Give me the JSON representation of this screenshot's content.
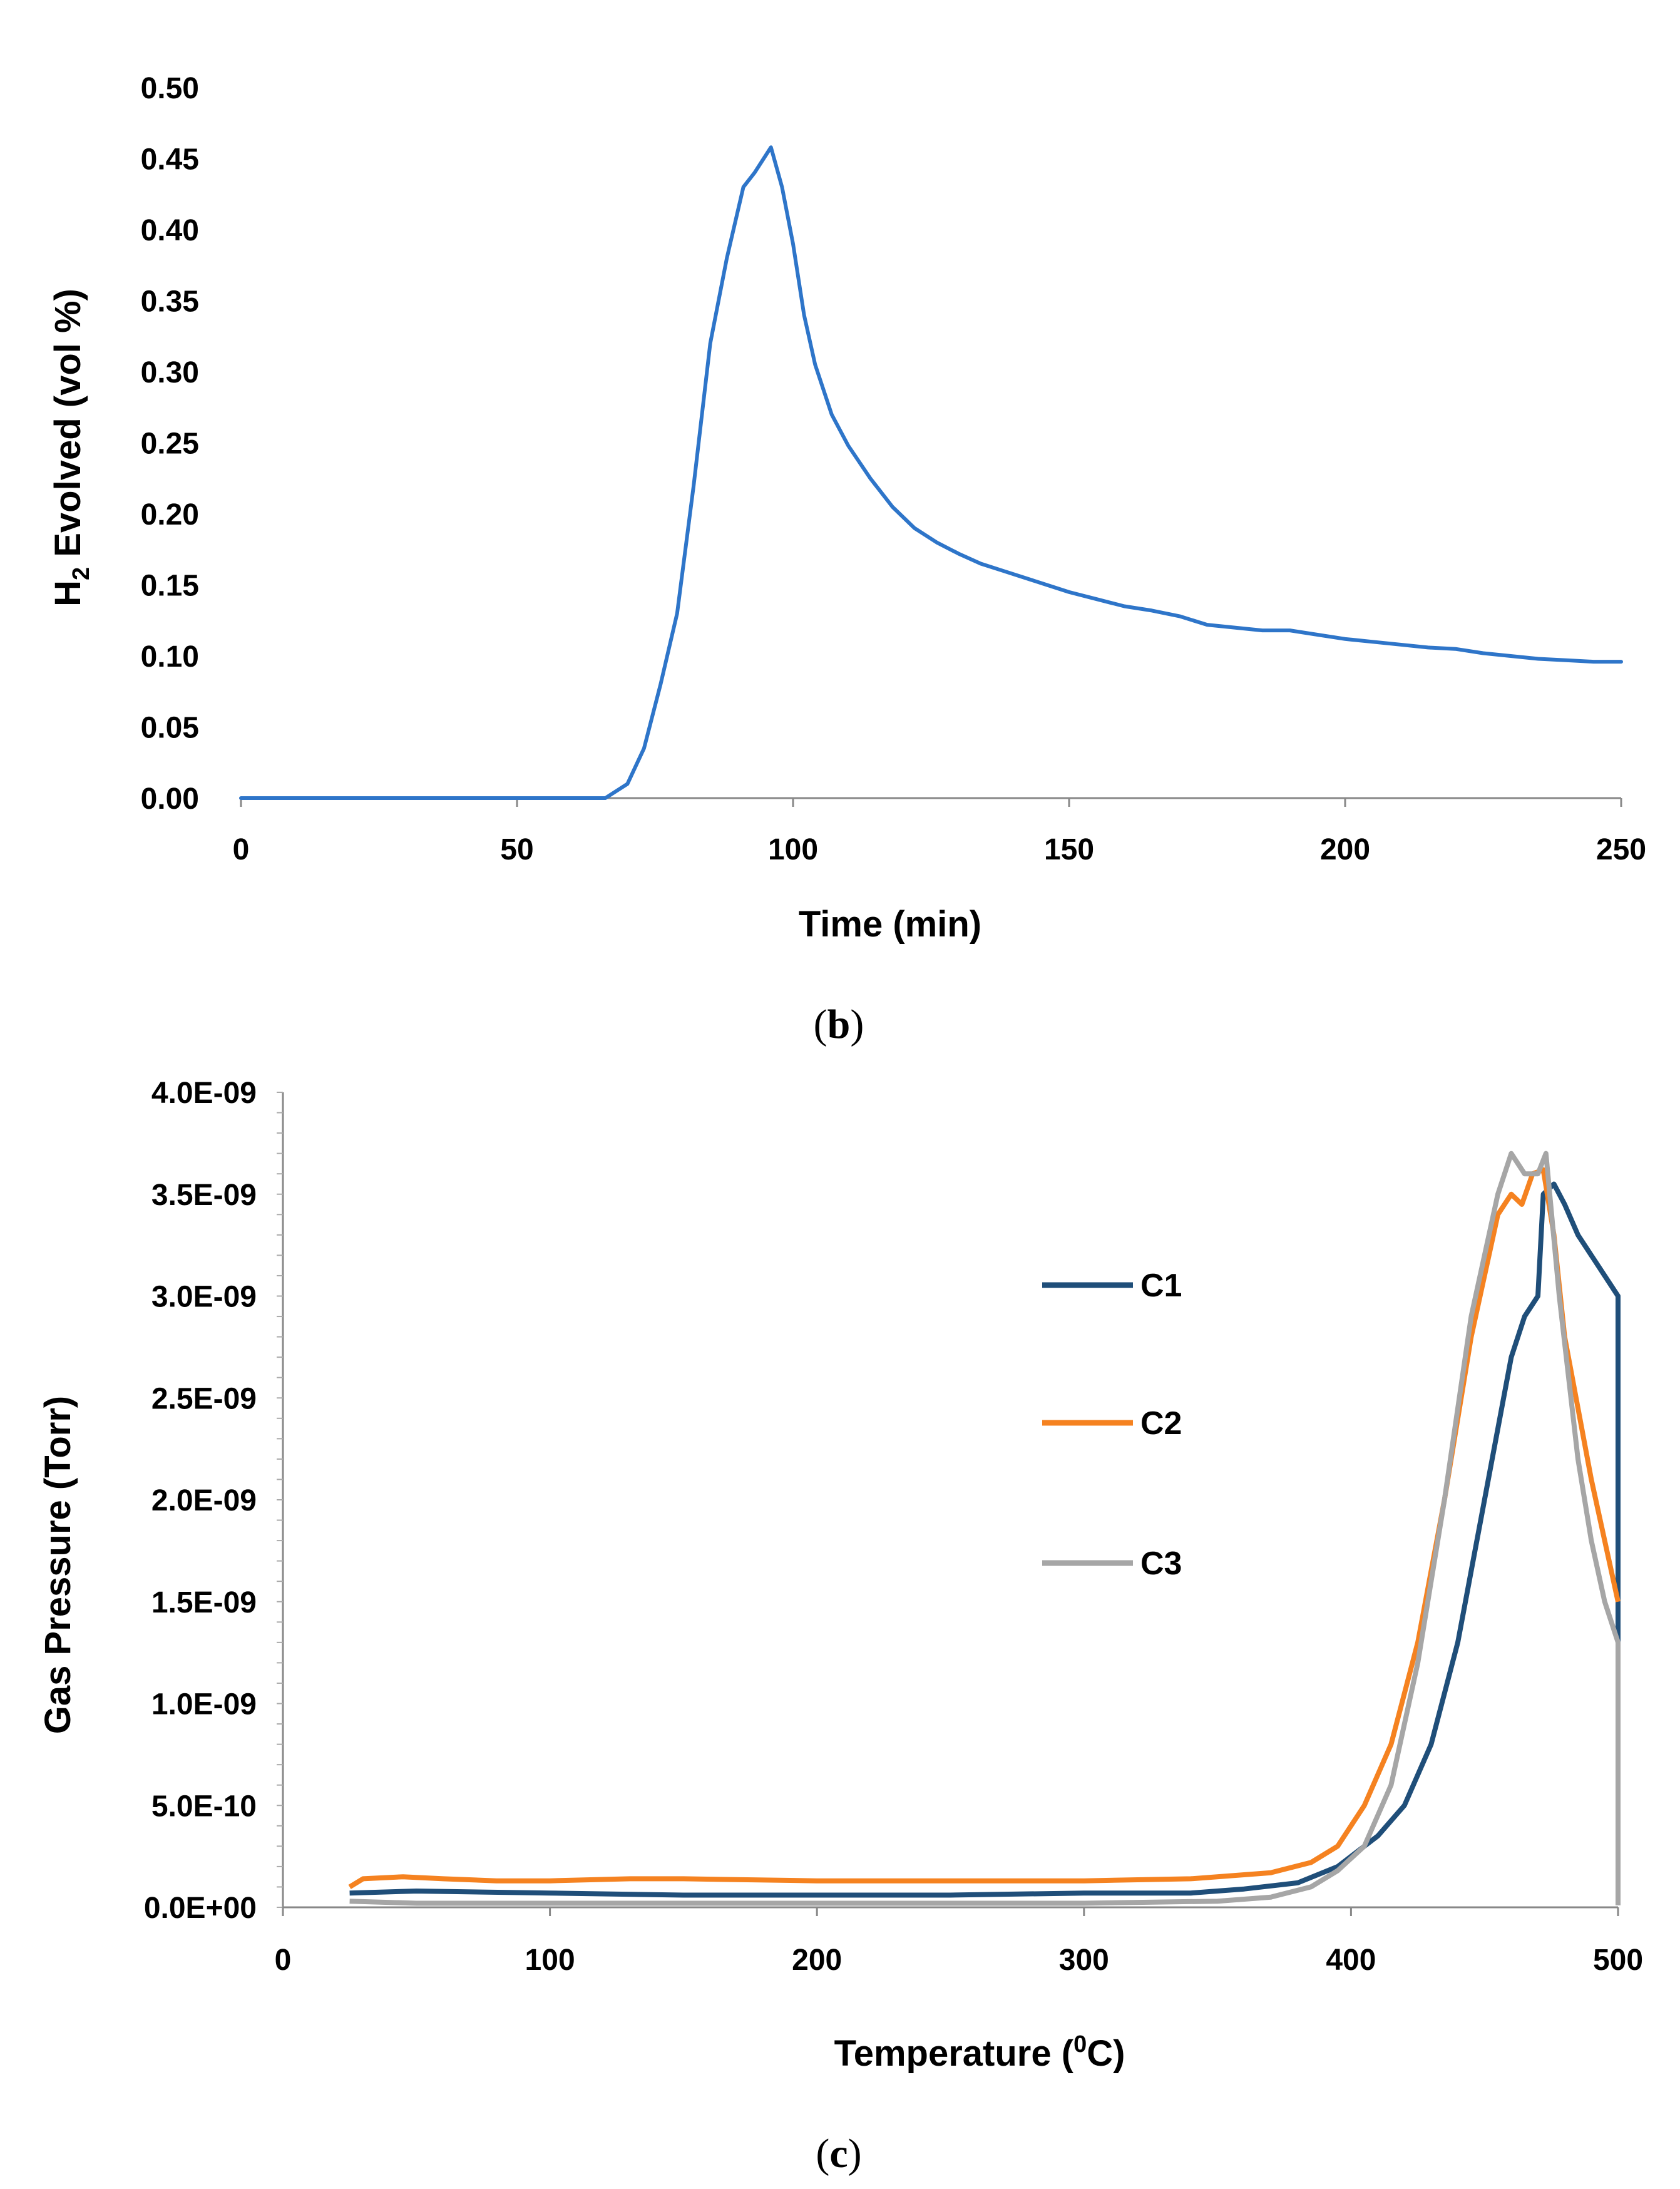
{
  "chart_data": [
    {
      "type": "line",
      "panel": "b",
      "caption_prefix": "(",
      "caption_letter": "b",
      "caption_suffix": ")",
      "title": "",
      "xlabel": "Time (min)",
      "ylabel_main": "H",
      "ylabel_sub": "2",
      "ylabel_rest": " Evolved (vol %)",
      "xlim": [
        0,
        250
      ],
      "ylim": [
        0,
        0.5
      ],
      "xticks": [
        0,
        50,
        100,
        150,
        200,
        250
      ],
      "xtick_labels": [
        "0",
        "50",
        "100",
        "150",
        "200",
        "250"
      ],
      "yticks": [
        0,
        0.05,
        0.1,
        0.15,
        0.2,
        0.25,
        0.3,
        0.35,
        0.4,
        0.45,
        0.5
      ],
      "ytick_labels": [
        "0.00",
        "0.05",
        "0.10",
        "0.15",
        "0.20",
        "0.25",
        "0.30",
        "0.35",
        "0.40",
        "0.45",
        "0.50"
      ],
      "grid": false,
      "series": [
        {
          "name": "H2",
          "color": "#2e75c9",
          "x": [
            0,
            10,
            20,
            30,
            40,
            50,
            60,
            66,
            70,
            73,
            76,
            79,
            82,
            85,
            88,
            91,
            93,
            96,
            98,
            100,
            102,
            104,
            107,
            110,
            114,
            118,
            122,
            126,
            130,
            134,
            138,
            142,
            146,
            150,
            155,
            160,
            165,
            170,
            175,
            180,
            185,
            190,
            195,
            200,
            205,
            210,
            215,
            220,
            225,
            230,
            235,
            240,
            245,
            250
          ],
          "values": [
            0,
            0,
            0,
            0,
            0,
            0,
            0,
            0,
            0.01,
            0.035,
            0.08,
            0.13,
            0.22,
            0.32,
            0.38,
            0.43,
            0.44,
            0.458,
            0.43,
            0.39,
            0.34,
            0.305,
            0.27,
            0.248,
            0.225,
            0.205,
            0.19,
            0.18,
            0.172,
            0.165,
            0.16,
            0.155,
            0.15,
            0.145,
            0.14,
            0.135,
            0.132,
            0.128,
            0.122,
            0.12,
            0.118,
            0.118,
            0.115,
            0.112,
            0.11,
            0.108,
            0.106,
            0.105,
            0.102,
            0.1,
            0.098,
            0.097,
            0.096,
            0.096
          ]
        }
      ]
    },
    {
      "type": "line",
      "panel": "c",
      "caption_prefix": "(",
      "caption_letter": "c",
      "caption_suffix": ")",
      "title": "",
      "xlabel_main": "Temperature (",
      "xlabel_sup": "0",
      "xlabel_rest": "C)",
      "ylabel": "Gas Pressure (Torr)",
      "xlim": [
        0,
        500
      ],
      "ylim": [
        0,
        4e-09
      ],
      "xticks": [
        0,
        100,
        200,
        300,
        400,
        500
      ],
      "xtick_labels": [
        "0",
        "100",
        "200",
        "300",
        "400",
        "500"
      ],
      "yticks": [
        0,
        5e-10,
        1e-09,
        1.5e-09,
        2e-09,
        2.5e-09,
        3e-09,
        3.5e-09,
        4e-09
      ],
      "ytick_labels": [
        "0.0E+00",
        "5.0E-10",
        "1.0E-09",
        "1.5E-09",
        "2.0E-09",
        "2.5E-09",
        "3.0E-09",
        "3.5E-09",
        "4.0E-09"
      ],
      "grid": false,
      "legend_position": "right",
      "series": [
        {
          "name": "C1",
          "color": "#1f4e79",
          "x": [
            25,
            50,
            100,
            150,
            200,
            250,
            300,
            340,
            360,
            380,
            395,
            410,
            420,
            430,
            440,
            450,
            460,
            465,
            470,
            472,
            476,
            480,
            485,
            490,
            495,
            500,
            500
          ],
          "values": [
            7e-11,
            8e-11,
            7e-11,
            6e-11,
            6e-11,
            6e-11,
            7e-11,
            7e-11,
            9e-11,
            1.2e-10,
            2e-10,
            3.5e-10,
            5e-10,
            8e-10,
            1.3e-09,
            2e-09,
            2.7e-09,
            2.9e-09,
            3e-09,
            3.5e-09,
            3.55e-09,
            3.45e-09,
            3.3e-09,
            3.2e-09,
            3.1e-09,
            3e-09,
            2e-11
          ]
        },
        {
          "name": "C2",
          "color": "#f58220",
          "x": [
            25,
            30,
            45,
            60,
            80,
            100,
            130,
            150,
            200,
            250,
            300,
            340,
            370,
            385,
            395,
            405,
            415,
            425,
            435,
            445,
            455,
            460,
            464,
            468,
            472,
            476,
            480,
            490,
            500
          ],
          "values": [
            1e-10,
            1.4e-10,
            1.5e-10,
            1.4e-10,
            1.3e-10,
            1.3e-10,
            1.4e-10,
            1.4e-10,
            1.3e-10,
            1.3e-10,
            1.3e-10,
            1.4e-10,
            1.7e-10,
            2.2e-10,
            3e-10,
            5e-10,
            8e-10,
            1.3e-09,
            2e-09,
            2.8e-09,
            3.4e-09,
            3.5e-09,
            3.45e-09,
            3.6e-09,
            3.62e-09,
            3.3e-09,
            2.8e-09,
            2.1e-09,
            1.5e-09
          ]
        },
        {
          "name": "C3",
          "color": "#a6a6a6",
          "x": [
            25,
            50,
            100,
            150,
            200,
            250,
            300,
            350,
            370,
            385,
            395,
            405,
            415,
            425,
            435,
            445,
            455,
            460,
            465,
            470,
            473,
            478,
            485,
            490,
            495,
            500,
            500
          ],
          "values": [
            3e-11,
            2e-11,
            2e-11,
            2e-11,
            2e-11,
            2e-11,
            2e-11,
            3e-11,
            5e-11,
            1e-10,
            1.8e-10,
            3e-10,
            6e-10,
            1.2e-09,
            2e-09,
            2.9e-09,
            3.5e-09,
            3.7e-09,
            3.6e-09,
            3.6e-09,
            3.7e-09,
            3e-09,
            2.2e-09,
            1.8e-09,
            1.5e-09,
            1.3e-09,
            1e-11
          ]
        }
      ]
    }
  ]
}
